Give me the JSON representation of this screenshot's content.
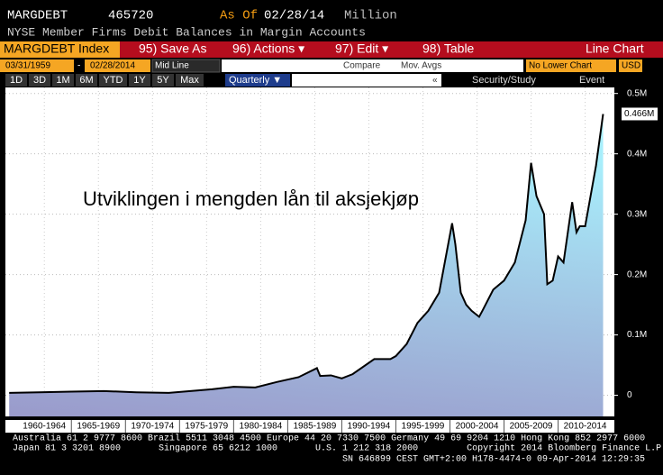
{
  "header": {
    "ticker": "MARGDEBT",
    "last": "465720",
    "as_of_label": "As Of",
    "as_of_date": "02/28/14",
    "unit": "Million",
    "description": "NYSE Member Firms Debit Balances in Margin Accounts"
  },
  "toolbar": {
    "security": "MARGDEBT Index",
    "buttons": [
      "95) Save As",
      "96) Actions ▾",
      "97) Edit ▾",
      "98) Table"
    ],
    "view": "Line Chart"
  },
  "range_bar": {
    "start": "03/31/1959",
    "dash": "-",
    "end": "02/28/2014",
    "style": "Mid Line",
    "compare": "Compare",
    "mov_avgs": "Mov. Avgs",
    "lower_chart": "No Lower Chart",
    "currency": "USD"
  },
  "period_bar": {
    "periods": [
      "1D",
      "3D",
      "1M",
      "6M",
      "YTD",
      "1Y",
      "5Y",
      "Max"
    ],
    "frequency": "Quarterly ▼",
    "collapse": "«",
    "study": "Security/Study",
    "event": "Event"
  },
  "chart_data": {
    "type": "area",
    "annotation": "Utviklingen i mengden lån til aksjekjøp",
    "x": [
      1959.25,
      1962,
      1965,
      1968,
      1971,
      1974,
      1976,
      1978,
      1980,
      1982,
      1984,
      1986,
      1987.7,
      1988,
      1989,
      1990,
      1991,
      1993,
      1994.5,
      1995,
      1996,
      1997,
      1998,
      1999,
      2000.2,
      2000.5,
      2001,
      2001.5,
      2002,
      2002.7,
      2003,
      2004,
      2005,
      2006,
      2007,
      2007.5,
      2008,
      2008.7,
      2009,
      2009.5,
      2010,
      2010.5,
      2011.3,
      2011.7,
      2012,
      2012.5,
      2013,
      2013.5,
      2014.16
    ],
    "series": [
      {
        "name": "MARGDEBT Index",
        "color": "#000000",
        "values": [
          0.004,
          0.005,
          0.006,
          0.007,
          0.005,
          0.004,
          0.007,
          0.01,
          0.014,
          0.013,
          0.022,
          0.03,
          0.045,
          0.032,
          0.033,
          0.028,
          0.035,
          0.06,
          0.06,
          0.065,
          0.085,
          0.12,
          0.14,
          0.17,
          0.285,
          0.25,
          0.17,
          0.15,
          0.14,
          0.13,
          0.14,
          0.175,
          0.19,
          0.22,
          0.29,
          0.385,
          0.33,
          0.3,
          0.184,
          0.19,
          0.23,
          0.22,
          0.32,
          0.27,
          0.28,
          0.28,
          0.33,
          0.38,
          0.466
        ]
      }
    ],
    "last_value_label": {
      "value": 0.466,
      "label": "0.466M"
    },
    "xlim": [
      1958.9,
      2015.2
    ],
    "xticks": [
      {
        "value": 1962.5,
        "label": "1960-1964"
      },
      {
        "value": 1967.5,
        "label": "1965-1969"
      },
      {
        "value": 1972.5,
        "label": "1970-1974"
      },
      {
        "value": 1977.5,
        "label": "1975-1979"
      },
      {
        "value": 1982.5,
        "label": "1980-1984"
      },
      {
        "value": 1987.5,
        "label": "1985-1989"
      },
      {
        "value": 1992.5,
        "label": "1990-1994"
      },
      {
        "value": 1997.5,
        "label": "1995-1999"
      },
      {
        "value": 2002.5,
        "label": "2000-2004"
      },
      {
        "value": 2007.5,
        "label": "2005-2009"
      },
      {
        "value": 2012.5,
        "label": "2010-2014"
      }
    ],
    "ylim": [
      -0.035,
      0.51
    ],
    "yticks": [
      0,
      {
        "value": 0.1,
        "label": "0.1M"
      },
      {
        "value": 0.2,
        "label": "0.2M"
      },
      {
        "value": 0.3,
        "label": "0.3M"
      },
      {
        "value": 0.4,
        "label": "0.4M"
      },
      {
        "value": 0.5,
        "label": "0.5M"
      }
    ],
    "grid": true
  },
  "footer": {
    "line1": "Australia 61 2 9777 8600 Brazil 5511 3048 4500 Europe 44 20 7330 7500 Germany 49 69 9204 1210 Hong Kong 852 2977 6000",
    "line2": "Japan 81 3 3201 8900       Singapore 65 6212 1000       U.S. 1 212 318 2000         Copyright 2014 Bloomberg Finance L.P.",
    "line3": "SN 646899 CEST GMT+2:00 H178-4474-0 09-Apr-2014 12:29:35"
  }
}
